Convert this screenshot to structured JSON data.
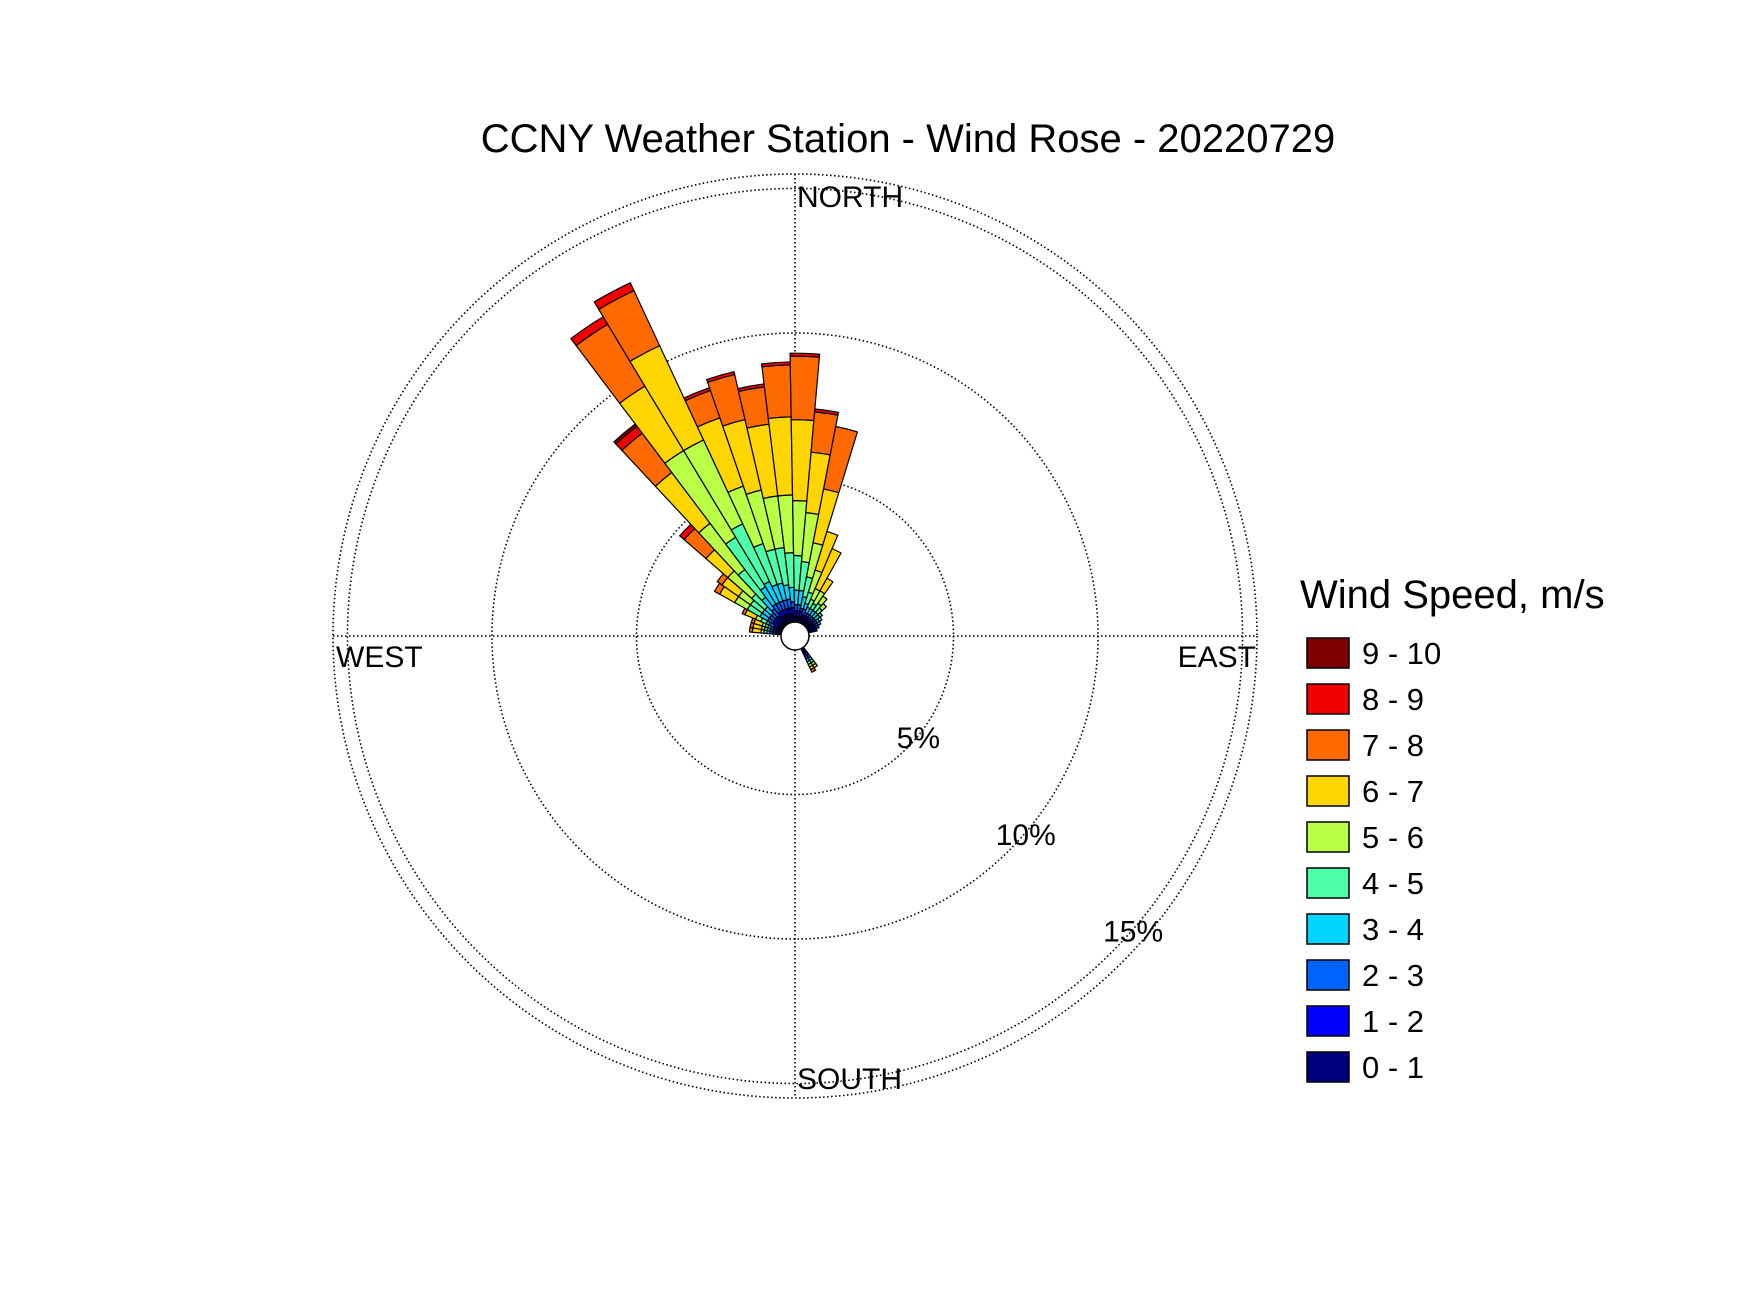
{
  "chart_data": {
    "type": "wind-rose",
    "title": "CCNY Weather Station - Wind Rose - 20220729",
    "direction_labels": {
      "north": "NORTH",
      "east": "EAST",
      "south": "SOUTH",
      "west": "WEST"
    },
    "radial_ticks": [
      {
        "value": 5,
        "label": "5%"
      },
      {
        "value": 10,
        "label": "10%"
      },
      {
        "value": 15,
        "label": "15%"
      }
    ],
    "r_max": 15.5,
    "grid": true,
    "legend": {
      "title": "Wind Speed, m/s",
      "placement": "right"
    },
    "speed_bins": [
      {
        "label": "0 - 1",
        "color": "#00007f"
      },
      {
        "label": "1 - 2",
        "color": "#0000ff"
      },
      {
        "label": "2 - 3",
        "color": "#0063ff"
      },
      {
        "label": "3 - 4",
        "color": "#00d4ff"
      },
      {
        "label": "4 - 5",
        "color": "#4effa9"
      },
      {
        "label": "5 - 6",
        "color": "#b8ff45"
      },
      {
        "label": "6 - 7",
        "color": "#ffd500"
      },
      {
        "label": "7 - 8",
        "color": "#ff6a00"
      },
      {
        "label": "8 - 9",
        "color": "#f20000"
      },
      {
        "label": "9 - 10",
        "color": "#7f0000"
      }
    ],
    "sector_width_deg": 6,
    "units": "percent of observations (cumulative by speed bin)",
    "sectors": [
      {
        "direction_deg": 172,
        "cumulative": [
          0.2,
          0.3,
          0.4,
          0.5,
          0.6,
          0.7,
          1.0,
          1.1
        ]
      },
      {
        "direction_deg": 166,
        "cumulative": [
          0.2,
          0.3,
          0.4,
          0.5,
          0.6,
          0.7,
          1.0,
          1.1
        ]
      },
      {
        "direction_deg": 160,
        "cumulative": [
          0.2,
          0.3,
          0.4,
          0.5,
          0.6,
          0.7,
          1.0,
          1.1
        ]
      },
      {
        "direction_deg": 154,
        "cumulative": [
          0.2,
          0.3,
          0.5,
          0.6,
          0.8,
          1.0,
          1.4,
          1.5
        ]
      },
      {
        "direction_deg": 148,
        "cumulative": [
          0.2,
          0.4,
          0.6,
          0.9,
          1.4,
          1.9,
          2.5,
          2.7
        ]
      },
      {
        "direction_deg": 142,
        "cumulative": [
          0.2,
          0.4,
          0.6,
          0.9,
          1.4,
          1.9,
          2.6,
          2.8
        ]
      },
      {
        "direction_deg": 136,
        "cumulative": [
          0.2,
          0.4,
          0.6,
          0.9,
          1.5,
          2.6,
          3.6,
          4.6,
          4.8
        ]
      },
      {
        "direction_deg": 130,
        "cumulative": [
          0.2,
          0.4,
          0.7,
          1.2,
          2.4,
          4.4,
          6.6,
          8.3,
          8.6,
          8.7
        ]
      },
      {
        "direction_deg": 124,
        "cumulative": [
          0.3,
          0.5,
          0.8,
          1.5,
          3.5,
          7.0,
          9.6,
          12.1,
          12.4
        ]
      },
      {
        "direction_deg": 118,
        "cumulative": [
          0.3,
          0.5,
          0.8,
          1.6,
          3.8,
          7.0,
          10.6,
          12.7,
          13.0
        ]
      },
      {
        "direction_deg": 112,
        "cumulative": [
          0.3,
          0.5,
          0.8,
          1.4,
          2.9,
          5.0,
          7.5,
          8.5,
          8.6
        ]
      },
      {
        "direction_deg": 106,
        "cumulative": [
          0.3,
          0.5,
          0.8,
          1.4,
          2.6,
          4.7,
          7.2,
          8.8,
          8.9
        ]
      },
      {
        "direction_deg": 100,
        "cumulative": [
          0.3,
          0.5,
          0.8,
          1.3,
          2.6,
          4.4,
          6.9,
          8.2,
          8.3
        ]
      },
      {
        "direction_deg": 94,
        "cumulative": [
          0.3,
          0.5,
          0.7,
          1.2,
          2.4,
          4.4,
          7.1,
          8.9,
          9.0
        ]
      },
      {
        "direction_deg": 88,
        "cumulative": [
          0.2,
          0.4,
          0.6,
          1.1,
          2.3,
          4.2,
          7.0,
          9.2,
          9.3
        ]
      },
      {
        "direction_deg": 82,
        "cumulative": [
          0.2,
          0.4,
          0.6,
          1.1,
          2.1,
          3.8,
          5.9,
          7.3,
          7.4
        ]
      },
      {
        "direction_deg": 76,
        "cumulative": [
          0.2,
          0.4,
          0.5,
          0.9,
          1.6,
          2.8,
          4.7,
          6.9
        ]
      },
      {
        "direction_deg": 70,
        "cumulative": [
          0.2,
          0.3,
          0.5,
          0.7,
          1.1,
          1.9,
          3.3
        ]
      },
      {
        "direction_deg": 64,
        "cumulative": [
          0.2,
          0.3,
          0.4,
          0.6,
          0.9,
          1.3,
          2.8
        ]
      },
      {
        "direction_deg": 58,
        "cumulative": [
          0.2,
          0.3,
          0.4,
          0.6,
          0.8,
          1.3,
          1.8
        ]
      },
      {
        "direction_deg": 52,
        "cumulative": [
          0.2,
          0.3,
          0.4,
          0.6,
          0.9,
          1.2
        ]
      },
      {
        "direction_deg": 46,
        "cumulative": [
          0.2,
          0.3,
          0.4,
          0.6,
          0.8,
          1.0
        ]
      },
      {
        "direction_deg": 40,
        "cumulative": [
          0.2,
          0.3,
          0.4,
          0.6,
          0.7
        ]
      },
      {
        "direction_deg": 34,
        "cumulative": [
          0.2,
          0.3,
          0.4,
          0.5,
          0.6
        ]
      },
      {
        "direction_deg": 28,
        "cumulative": [
          0.2,
          0.3,
          0.4,
          0.5
        ]
      },
      {
        "direction_deg": 22,
        "cumulative": [
          0.2,
          0.3,
          0.4
        ]
      },
      {
        "direction_deg": 16,
        "cumulative": [
          0.2,
          0.3
        ]
      },
      {
        "direction_deg": -62,
        "cumulative": [
          0.2,
          0.3,
          0.4,
          0.5,
          0.6,
          0.7,
          0.8,
          0.9
        ]
      },
      {
        "direction_deg": -56,
        "cumulative": [
          0.2,
          0.3,
          0.4,
          0.5,
          0.6,
          0.7,
          0.8
        ]
      }
    ]
  }
}
